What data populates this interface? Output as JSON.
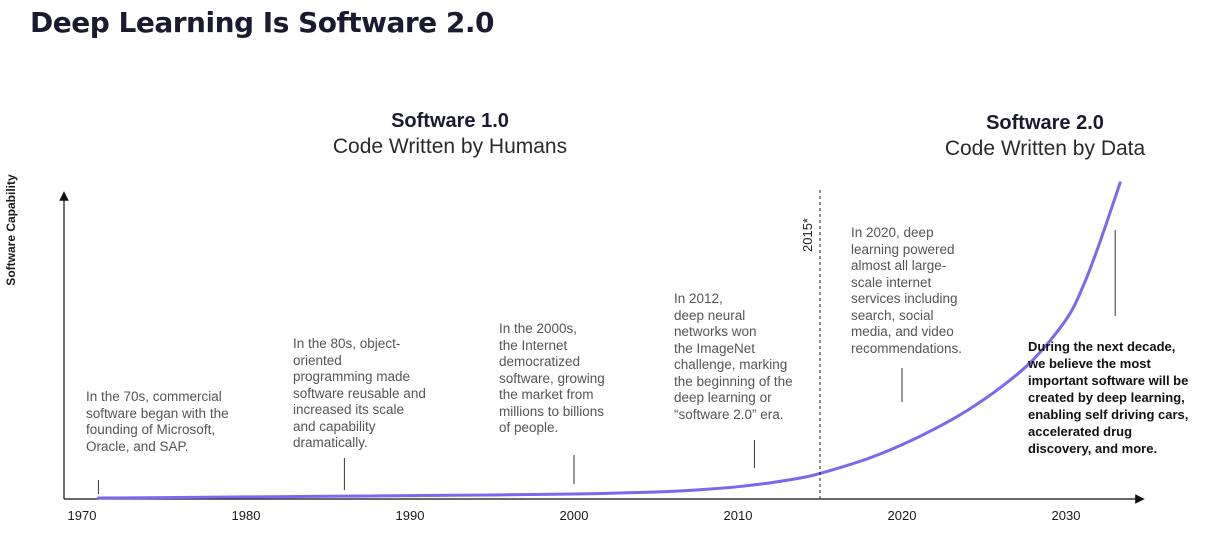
{
  "title": "Deep Learning Is Software 2.0",
  "eras": [
    {
      "name": "Software 1.0",
      "subtitle": "Code Written by Humans"
    },
    {
      "name": "Software 2.0",
      "subtitle": "Code Written by Data"
    }
  ],
  "chart_data": {
    "type": "line",
    "ylabel": "Software Capability",
    "xlabel": "",
    "x_ticks": [
      "1970",
      "1980",
      "1990",
      "2000",
      "2010",
      "2020",
      "2030"
    ],
    "xlim": [
      1970,
      2034
    ],
    "grid": false,
    "legend": "none",
    "color": "#7b68ee",
    "series": [
      {
        "x": [
          1971,
          1975,
          1980,
          1985,
          1990,
          1995,
          2000,
          2005,
          2008,
          2010,
          2012,
          2014,
          2015,
          2016,
          2018,
          2020,
          2022,
          2024,
          2026,
          2028,
          2030,
          2031,
          2032,
          2033.3
        ],
        "y": [
          0,
          0.3,
          0.8,
          1.3,
          1.8,
          2.3,
          3.0,
          4.5,
          6.5,
          8.5,
          11.5,
          15.5,
          18.5,
          22.0,
          30.0,
          40.0,
          52.0,
          66.0,
          83.0,
          104.0,
          134.0,
          158.0,
          190.0,
          237.0
        ]
      }
    ],
    "marker": {
      "x": 2015,
      "label": "2015*"
    },
    "annotations": [
      {
        "id": "a1970",
        "x": 1971,
        "lines": [
          "In the 70s, commercial",
          "software began with the",
          "founding of Microsoft,",
          "Oracle, and SAP."
        ]
      },
      {
        "id": "a1980",
        "x": 1986,
        "lines": [
          "In the 80s, object-",
          "oriented",
          "programming made",
          "software reusable and",
          "increased its scale",
          "and capability",
          "dramatically."
        ]
      },
      {
        "id": "a2000",
        "x": 2000,
        "lines": [
          "In the 2000s,",
          "the Internet",
          "democratized",
          "software, growing",
          "the market from",
          "millions to billions",
          "of people."
        ]
      },
      {
        "id": "a2012",
        "x": 2011,
        "lines": [
          "In 2012,",
          "deep neural",
          "networks won",
          "the ImageNet",
          "challenge, marking",
          "the beginning of the",
          "deep learning or",
          "“software 2.0” era."
        ]
      },
      {
        "id": "a2020",
        "x": 2020,
        "lines": [
          "In 2020, deep",
          "learning powered",
          "almost all large-",
          "scale internet",
          "services including",
          "search, social",
          "media, and video",
          "recommendations."
        ]
      },
      {
        "id": "a2030",
        "x": 2033,
        "lines": [
          "During the next decade,",
          "we believe the most",
          "important software will be",
          "created by deep learning,",
          "enabling self driving cars,",
          "accelerated drug",
          "discovery, and more."
        ]
      }
    ]
  }
}
